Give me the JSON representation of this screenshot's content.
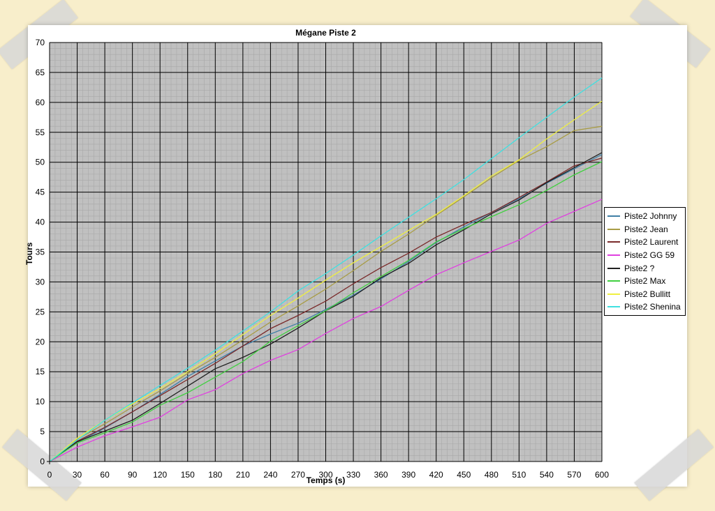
{
  "chart_data": {
    "type": "line",
    "title": "Mégane Piste 2",
    "xlabel": "Temps (s)",
    "ylabel": "Tours",
    "xlim": [
      0,
      600
    ],
    "ylim": [
      0,
      70
    ],
    "x_ticks": [
      "0",
      "30",
      "60",
      "90",
      "120",
      "150",
      "180",
      "210",
      "240",
      "270",
      "300",
      "330",
      "360",
      "390",
      "420",
      "450",
      "480",
      "510",
      "540",
      "570",
      "600"
    ],
    "y_ticks": [
      "0",
      "5",
      "10",
      "15",
      "20",
      "25",
      "30",
      "35",
      "40",
      "45",
      "50",
      "55",
      "60",
      "65",
      "70"
    ],
    "grid": true,
    "plot_background": "#c0c0c0",
    "legend_position": "right",
    "x": [
      0,
      30,
      60,
      90,
      120,
      150,
      180,
      210,
      240,
      270,
      300,
      330,
      360,
      390,
      420,
      450,
      480,
      510,
      540,
      570,
      600
    ],
    "series": [
      {
        "name": "Piste2 Johnny",
        "color": "#3f7fa6",
        "values": [
          0,
          3.2,
          5.6,
          8.3,
          11.2,
          14.2,
          16.8,
          19.3,
          21.3,
          23.1,
          25.4,
          27.8,
          30.5,
          33.4,
          36.6,
          39.2,
          41.6,
          43.9,
          46.5,
          48.9,
          51.3
        ]
      },
      {
        "name": "Piste2 Jean",
        "color": "#a89c45",
        "values": [
          0,
          3.7,
          6.3,
          9.1,
          11.8,
          14.7,
          17.4,
          20.3,
          23.3,
          26.0,
          28.8,
          31.9,
          35.1,
          38.0,
          41.1,
          44.2,
          47.4,
          50.3,
          52.6,
          55.3,
          56.0
        ]
      },
      {
        "name": "Piste2 Laurent",
        "color": "#7a2a2a",
        "values": [
          0,
          3.4,
          5.7,
          8.3,
          11.0,
          13.7,
          16.4,
          19.3,
          22.2,
          24.4,
          26.8,
          29.7,
          32.4,
          34.8,
          37.5,
          39.6,
          41.6,
          44.1,
          46.7,
          49.4,
          50.7
        ]
      },
      {
        "name": "Piste2 GG 59",
        "color": "#e040e0",
        "values": [
          0,
          2.4,
          4.3,
          5.8,
          7.4,
          10.3,
          12.0,
          14.7,
          16.9,
          18.7,
          21.4,
          23.9,
          25.9,
          28.6,
          31.2,
          33.2,
          35.1,
          37.0,
          39.8,
          41.8,
          43.8
        ]
      },
      {
        "name": "Piste2 ?",
        "color": "#202020",
        "values": [
          0,
          3.3,
          5.1,
          6.9,
          9.7,
          12.6,
          15.5,
          17.4,
          19.6,
          22.3,
          25.2,
          27.6,
          30.7,
          33.1,
          36.2,
          38.7,
          41.4,
          43.7,
          46.6,
          49.1,
          51.6
        ]
      },
      {
        "name": "Piste2 Max",
        "color": "#40d040",
        "values": [
          0,
          3.1,
          4.8,
          6.6,
          9.4,
          11.5,
          14.1,
          16.7,
          20.1,
          22.7,
          25.2,
          28.2,
          30.9,
          33.6,
          36.7,
          38.9,
          40.9,
          42.9,
          45.3,
          47.9,
          50.1
        ]
      },
      {
        "name": "Piste2 Bullitt",
        "color": "#f0f040",
        "values": [
          0,
          3.9,
          6.9,
          9.6,
          12.2,
          15.0,
          18.0,
          21.2,
          24.4,
          27.3,
          30.3,
          33.2,
          35.9,
          38.6,
          41.3,
          44.4,
          47.7,
          50.4,
          53.9,
          57.1,
          60.2
        ]
      },
      {
        "name": "Piste2 Shenina",
        "color": "#40e0e0",
        "values": [
          0,
          3.6,
          6.9,
          9.8,
          12.7,
          15.6,
          18.6,
          21.8,
          25.0,
          28.5,
          31.4,
          34.5,
          37.7,
          40.8,
          43.9,
          47.1,
          50.6,
          54.1,
          57.5,
          60.9,
          64.1
        ]
      }
    ]
  }
}
